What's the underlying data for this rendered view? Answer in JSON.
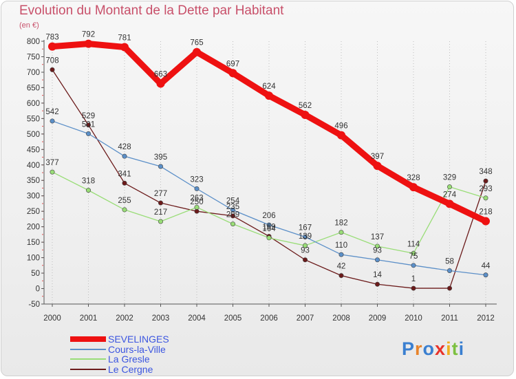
{
  "header": {
    "title": "Evolution du Montant de la Dette par Habitant",
    "unit": "(en €)"
  },
  "logo": {
    "text": "Proxiti",
    "letter_colors": [
      "#3a7fd0",
      "#e8832a",
      "#3a7fd0",
      "#e8332a",
      "#f0b020",
      "#7cc040",
      "#3a7fd0"
    ]
  },
  "chart_data": {
    "type": "line",
    "title": "Evolution du Montant de la Dette par Habitant",
    "ylabel": "(en €)",
    "xlabel": "",
    "x": [
      "2000",
      "2001",
      "2002",
      "2003",
      "2004",
      "2005",
      "2006",
      "2007",
      "2008",
      "2009",
      "2010",
      "2011",
      "2012"
    ],
    "ylim": [
      -50,
      800
    ],
    "yticks": [
      -50,
      0,
      50,
      100,
      150,
      200,
      250,
      300,
      350,
      400,
      450,
      500,
      550,
      600,
      650,
      700,
      750,
      800
    ],
    "grid": "vertical dotted",
    "legend_position": "bottom-left",
    "series": [
      {
        "name": "SEVELINGES",
        "color": "#ee1111",
        "values": [
          783,
          792,
          781,
          663,
          765,
          697,
          624,
          562,
          496,
          397,
          328,
          274,
          218
        ],
        "labels": [
          "783",
          "792",
          "781",
          "663",
          "765",
          "697",
          "624",
          "562",
          "496",
          "397",
          "328",
          "274",
          "218"
        ]
      },
      {
        "name": "Cours-la-Ville",
        "color": "#5b8fc8",
        "values": [
          542,
          501,
          428,
          395,
          323,
          254,
          206,
          167,
          110,
          93,
          75,
          58,
          44
        ],
        "labels": [
          "542",
          "501",
          "428",
          "395",
          "323",
          "254",
          "206",
          "167",
          "110",
          "93",
          "75",
          "58",
          "44"
        ]
      },
      {
        "name": "La Gresle",
        "color": "#99dd77",
        "values": [
          377,
          318,
          255,
          217,
          263,
          209,
          164,
          139,
          182,
          137,
          114,
          329,
          293
        ],
        "labels": [
          "377",
          "318",
          "255",
          "217",
          "263",
          "209",
          "164",
          "139",
          "182",
          "137",
          "114",
          "329",
          "293"
        ]
      },
      {
        "name": "Le Cergne",
        "color": "#6b1a1a",
        "values": [
          708,
          529,
          341,
          277,
          250,
          235,
          169,
          93,
          42,
          14,
          1,
          1,
          348
        ],
        "labels": [
          "708",
          "529",
          "341",
          "277",
          "250",
          "235",
          "169",
          "93",
          "42",
          "14",
          "1",
          "",
          "348"
        ]
      }
    ]
  }
}
